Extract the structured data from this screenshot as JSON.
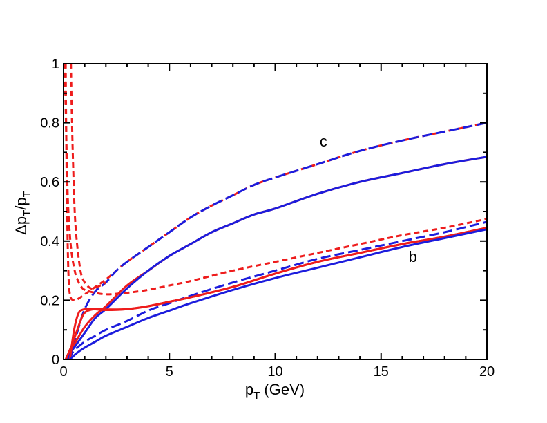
{
  "chart_data": {
    "type": "line",
    "title": "",
    "xlabel": {
      "base": "p",
      "sub": "T",
      "suffix": " (GeV)"
    },
    "ylabel": {
      "prefix": "Δp",
      "sub1": "T",
      "mid": "/p",
      "sub2": "T"
    },
    "xlim": [
      0,
      20
    ],
    "ylim": [
      0,
      1
    ],
    "xticks": [
      0,
      5,
      10,
      15,
      20
    ],
    "xtick_labels": [
      "0",
      "5",
      "10",
      "15",
      "20"
    ],
    "yticks": [
      0,
      0.2,
      0.4,
      0.6,
      0.8,
      1
    ],
    "ytick_labels": [
      "0",
      "0.2",
      "0.4",
      "0.6",
      "0.8",
      "1"
    ],
    "grid": false,
    "colors": {
      "red": "#ee1c1c",
      "blue": "#1c1cdd",
      "axis": "#000000"
    },
    "annotations": [
      {
        "text": "c",
        "x": 12.1,
        "y": 0.72
      },
      {
        "text": "b",
        "x": 16.3,
        "y": 0.33
      }
    ],
    "series": [
      {
        "name": "c-dashed-red",
        "color": "red",
        "dash": "short",
        "x": [
          0.1,
          0.15,
          0.22,
          0.3,
          0.5,
          0.8,
          1.2,
          1.6,
          2.0,
          2.5,
          3,
          4,
          5,
          6,
          7,
          8,
          9,
          10,
          12,
          14,
          16,
          18,
          20
        ],
        "y": [
          1.0,
          0.6,
          0.32,
          0.22,
          0.2,
          0.21,
          0.23,
          0.25,
          0.27,
          0.3,
          0.33,
          0.38,
          0.43,
          0.48,
          0.52,
          0.555,
          0.59,
          0.615,
          0.66,
          0.705,
          0.74,
          0.77,
          0.8
        ]
      },
      {
        "name": "c-dashed-blue",
        "color": "blue",
        "dash": "long",
        "x": [
          0.2,
          0.4,
          0.6,
          1.0,
          1.5,
          2.0,
          2.5,
          3,
          4,
          5,
          6,
          7,
          8,
          9,
          10,
          12,
          14,
          16,
          18,
          20
        ],
        "y": [
          0.0,
          0.02,
          0.08,
          0.17,
          0.23,
          0.26,
          0.3,
          0.33,
          0.38,
          0.43,
          0.48,
          0.52,
          0.555,
          0.59,
          0.615,
          0.66,
          0.705,
          0.74,
          0.77,
          0.8
        ]
      },
      {
        "name": "c-solid-red",
        "color": "red",
        "dash": "solid",
        "x": [
          0.15,
          0.3,
          0.5,
          1.0,
          1.5,
          2.0,
          3,
          4,
          5,
          6,
          7,
          8,
          9,
          10,
          12,
          14,
          16,
          18,
          20
        ],
        "y": [
          0.0,
          0.02,
          0.05,
          0.11,
          0.15,
          0.18,
          0.25,
          0.3,
          0.35,
          0.39,
          0.43,
          0.46,
          0.49,
          0.51,
          0.56,
          0.6,
          0.63,
          0.66,
          0.685
        ]
      },
      {
        "name": "c-solid-blue",
        "color": "blue",
        "dash": "solid",
        "x": [
          0.15,
          0.3,
          0.5,
          1.0,
          1.5,
          2.0,
          3,
          4,
          5,
          6,
          7,
          8,
          9,
          10,
          12,
          14,
          16,
          18,
          20
        ],
        "y": [
          0.0,
          0.02,
          0.04,
          0.09,
          0.14,
          0.17,
          0.24,
          0.3,
          0.35,
          0.39,
          0.43,
          0.46,
          0.49,
          0.51,
          0.56,
          0.6,
          0.63,
          0.66,
          0.685
        ]
      },
      {
        "name": "b-dashed-red",
        "color": "red",
        "dash": "short",
        "x": [
          0.05,
          0.1,
          0.2,
          0.3,
          0.4,
          0.5,
          0.6,
          0.8,
          1.0,
          1.5,
          2.0,
          2.5,
          3,
          4,
          5,
          6,
          8,
          10,
          12,
          14,
          16,
          18,
          20
        ],
        "y": [
          1.0,
          0.85,
          0.55,
          0.42,
          0.35,
          0.31,
          0.28,
          0.25,
          0.235,
          0.225,
          0.22,
          0.222,
          0.225,
          0.235,
          0.25,
          0.265,
          0.3,
          0.33,
          0.36,
          0.39,
          0.42,
          0.445,
          0.475
        ]
      },
      {
        "name": "b-dashed-red-steep",
        "color": "red",
        "dash": "short",
        "x": [
          0.35,
          0.4,
          0.5,
          0.6,
          0.8,
          1.0,
          1.3,
          1.6,
          2.0
        ],
        "y": [
          1.0,
          0.8,
          0.55,
          0.42,
          0.3,
          0.26,
          0.24,
          0.245,
          0.26
        ]
      },
      {
        "name": "b-dashed-blue",
        "color": "blue",
        "dash": "long",
        "x": [
          0.2,
          0.5,
          1.0,
          1.5,
          2.0,
          3,
          4,
          5,
          6,
          8,
          10,
          12,
          14,
          16,
          18,
          20
        ],
        "y": [
          0.0,
          0.03,
          0.06,
          0.08,
          0.1,
          0.13,
          0.165,
          0.19,
          0.215,
          0.26,
          0.3,
          0.34,
          0.37,
          0.4,
          0.43,
          0.465
        ]
      },
      {
        "name": "b-solid-red-1",
        "color": "red",
        "dash": "solid",
        "x": [
          0.3,
          0.5,
          0.7,
          0.9,
          1.2,
          1.6,
          2.0,
          3,
          4,
          5,
          6,
          8,
          10,
          12,
          14,
          16,
          18,
          20
        ],
        "y": [
          0.0,
          0.1,
          0.155,
          0.168,
          0.17,
          0.169,
          0.167,
          0.17,
          0.18,
          0.195,
          0.21,
          0.245,
          0.29,
          0.33,
          0.36,
          0.39,
          0.415,
          0.445
        ]
      },
      {
        "name": "b-solid-red-2",
        "color": "red",
        "dash": "solid",
        "x": [
          0.1,
          0.4,
          0.8,
          1.0,
          1.3,
          1.6,
          2.0,
          3,
          4,
          5,
          6,
          8,
          10,
          12,
          14,
          16,
          18,
          20
        ],
        "y": [
          0.0,
          0.05,
          0.13,
          0.158,
          0.168,
          0.17,
          0.169,
          0.17,
          0.18,
          0.195,
          0.21,
          0.245,
          0.29,
          0.33,
          0.36,
          0.39,
          0.415,
          0.445
        ]
      },
      {
        "name": "b-solid-blue",
        "color": "blue",
        "dash": "solid",
        "x": [
          0.3,
          0.6,
          1.0,
          1.5,
          2.0,
          3,
          4,
          5,
          6,
          8,
          10,
          12,
          14,
          16,
          18,
          20
        ],
        "y": [
          0.0,
          0.02,
          0.04,
          0.06,
          0.08,
          0.11,
          0.14,
          0.165,
          0.19,
          0.235,
          0.275,
          0.31,
          0.345,
          0.38,
          0.41,
          0.44
        ]
      }
    ]
  }
}
